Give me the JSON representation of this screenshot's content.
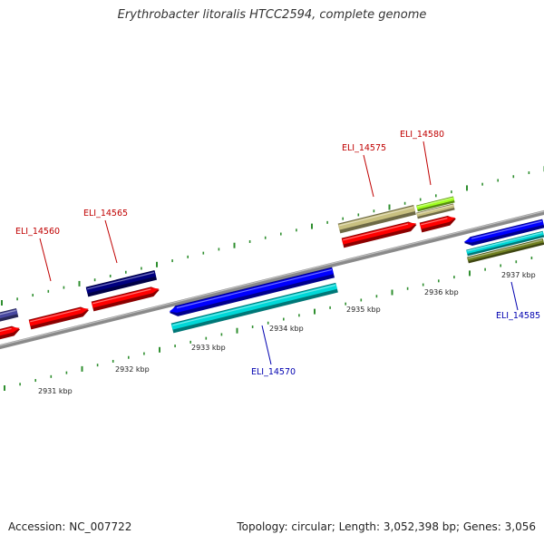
{
  "title": "Erythrobacter litoralis HTCC2594, complete genome",
  "footer": {
    "accession": "Accession: NC_007722",
    "stats": "Topology: circular; Length: 3,052,398 bp; Genes: 3,056"
  },
  "colors": {
    "backbone": "#8a8a8a",
    "ticks": "#2f8f2f",
    "label_forward": "#c00000",
    "label_reverse": "#0000b0"
  },
  "scale_labels": [
    "2931 kbp",
    "2932 kbp",
    "2933 kbp",
    "2934 kbp",
    "2935 kbp",
    "2936 kbp",
    "2937 kbp"
  ],
  "gene_labels": [
    "ELI_14560",
    "ELI_14565",
    "ELI_14570",
    "ELI_14575",
    "ELI_14580",
    "ELI_14585"
  ],
  "feature_colors": {
    "red_cds": "#ff0000",
    "navy": "#000080",
    "blue": "#0000ff",
    "cyan": "#00d8d8",
    "khaki": "#c8c080",
    "lime": "#a0ff20",
    "olive": "#708020",
    "slate": "#4848a0"
  }
}
